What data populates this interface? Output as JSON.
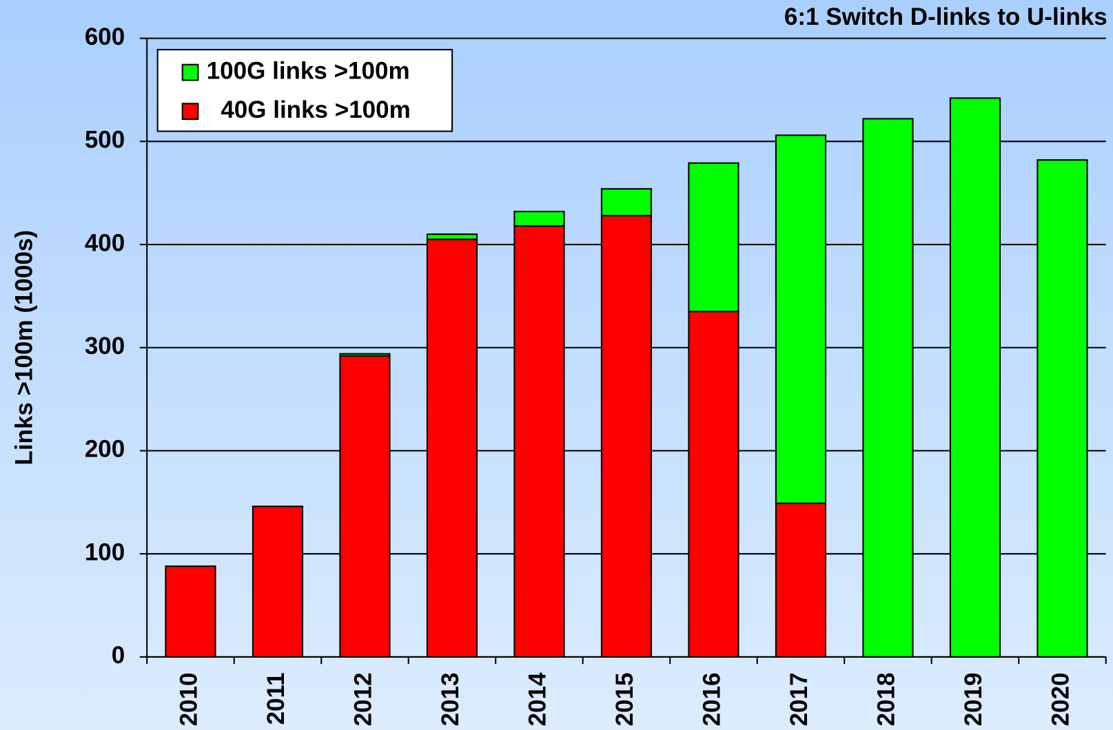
{
  "chart_data": {
    "type": "stacked_bar",
    "title": "6:1 Switch D-links to U-links",
    "y_label": "Links >100m (1000s)",
    "categories": [
      "2010",
      "2011",
      "2012",
      "2013",
      "2014",
      "2015",
      "2016",
      "2017",
      "2018",
      "2019",
      "2020"
    ],
    "series": [
      {
        "name": "40G links >100m",
        "color": "#ff0000",
        "values": [
          88,
          146,
          292,
          405,
          418,
          428,
          335,
          149,
          0,
          0,
          0
        ]
      },
      {
        "name": "100G links >100m",
        "color": "#00ff00",
        "values": [
          0,
          0,
          2,
          5,
          14,
          26,
          144,
          357,
          522,
          542,
          482
        ]
      }
    ],
    "ylim": [
      0,
      600
    ],
    "yticks": [
      0,
      100,
      200,
      300,
      400,
      500,
      600
    ],
    "grid": true,
    "legend": "upper left"
  }
}
